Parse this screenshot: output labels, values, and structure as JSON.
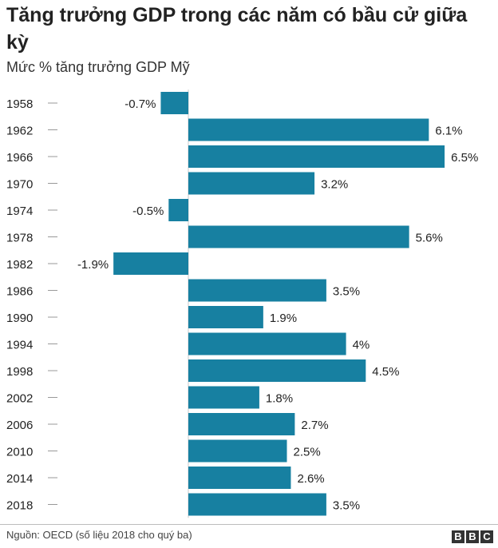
{
  "title": "Tăng trưởng GDP trong các năm có bầu cử giữa kỳ",
  "subtitle": "Mức % tăng trưởng GDP Mỹ",
  "source": "Nguồn: OECD (số liệu 2018 cho quý ba)",
  "logo": [
    "B",
    "B",
    "C"
  ],
  "colors": {
    "bar": "#1780a1",
    "axis": "#c8c8c8",
    "tick": "#999999",
    "text": "#222222"
  },
  "chart_data": {
    "type": "bar",
    "orientation": "horizontal",
    "title": "Tăng trưởng GDP trong các năm có bầu cử giữa kỳ",
    "subtitle": "Mức % tăng trưởng GDP Mỹ",
    "categories": [
      "1958",
      "1962",
      "1966",
      "1970",
      "1974",
      "1978",
      "1982",
      "1986",
      "1990",
      "1994",
      "1998",
      "2002",
      "2006",
      "2010",
      "2014",
      "2018"
    ],
    "values": [
      -0.7,
      6.1,
      6.5,
      3.2,
      -0.5,
      5.6,
      -1.9,
      3.5,
      1.9,
      4,
      4.5,
      1.8,
      2.7,
      2.5,
      2.6,
      3.5
    ],
    "labels": [
      "-0.7%",
      "6.1%",
      "6.5%",
      "3.2%",
      "-0.5%",
      "5.6%",
      "-1.9%",
      "3.5%",
      "1.9%",
      "4%",
      "4.5%",
      "1.8%",
      "2.7%",
      "2.5%",
      "2.6%",
      "3.5%"
    ],
    "xlim": [
      -1.9,
      6.5
    ],
    "grid": false,
    "legend": "none"
  }
}
